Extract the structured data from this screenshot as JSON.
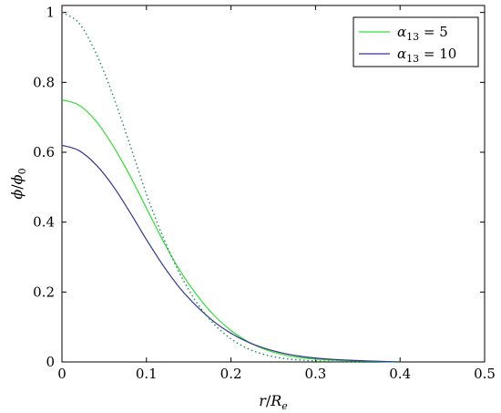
{
  "chart_data": {
    "type": "line",
    "title": "",
    "xlabel": "r/R_e",
    "ylabel": "ϕ/ϕ_0",
    "xlim": [
      0,
      0.5
    ],
    "ylim": [
      0,
      1.02
    ],
    "xticks": [
      "0",
      "0.1",
      "0.2",
      "0.3",
      "0.4",
      "0.5"
    ],
    "yticks": [
      "0",
      "0.2",
      "0.4",
      "0.6",
      "0.8",
      "1"
    ],
    "grid": false,
    "legend_position": "top-right",
    "series": [
      {
        "name": "α13 = 5",
        "color": "#33dd33",
        "style": "solid",
        "x": [
          0,
          0.02,
          0.04,
          0.06,
          0.08,
          0.1,
          0.12,
          0.14,
          0.16,
          0.18,
          0.2,
          0.22,
          0.24,
          0.26,
          0.28,
          0.3,
          0.33,
          0.36,
          0.4
        ],
        "y": [
          0.75,
          0.735,
          0.69,
          0.62,
          0.535,
          0.44,
          0.345,
          0.26,
          0.19,
          0.133,
          0.09,
          0.058,
          0.036,
          0.022,
          0.013,
          0.008,
          0.004,
          0.002,
          0.0
        ]
      },
      {
        "name": "α13 = 10",
        "color": "#333399",
        "style": "solid",
        "x": [
          0,
          0.02,
          0.04,
          0.06,
          0.08,
          0.1,
          0.12,
          0.14,
          0.16,
          0.18,
          0.2,
          0.22,
          0.24,
          0.26,
          0.28,
          0.3,
          0.33,
          0.36,
          0.4
        ],
        "y": [
          0.62,
          0.605,
          0.565,
          0.505,
          0.43,
          0.35,
          0.275,
          0.21,
          0.158,
          0.115,
          0.082,
          0.057,
          0.039,
          0.026,
          0.017,
          0.011,
          0.006,
          0.003,
          0.0
        ]
      },
      {
        "color": "#1a8a5a",
        "style": "dotted",
        "x": [
          0,
          0.02,
          0.04,
          0.06,
          0.08,
          0.1,
          0.12,
          0.14,
          0.16,
          0.18,
          0.2,
          0.22,
          0.24,
          0.26,
          0.28,
          0.3,
          0.33,
          0.36,
          0.4
        ],
        "y": [
          1.0,
          0.97,
          0.885,
          0.765,
          0.625,
          0.48,
          0.355,
          0.25,
          0.168,
          0.108,
          0.066,
          0.038,
          0.021,
          0.011,
          0.006,
          0.003,
          0.001,
          0.0,
          0.0
        ]
      }
    ],
    "legend": {
      "entries": [
        {
          "label_prefix": "α",
          "label_sub": "13",
          "label_suffix": " = 5",
          "color": "#33dd33"
        },
        {
          "label_prefix": "α",
          "label_sub": "13",
          "label_suffix": " = 10",
          "color": "#333399"
        }
      ]
    },
    "axis_labels": {
      "x_main": "r",
      "x_slash": "/",
      "x_var": "R",
      "x_sub": "e",
      "y_main": "ϕ",
      "y_slash": "/",
      "y_var": "ϕ",
      "y_sub": "0"
    }
  }
}
